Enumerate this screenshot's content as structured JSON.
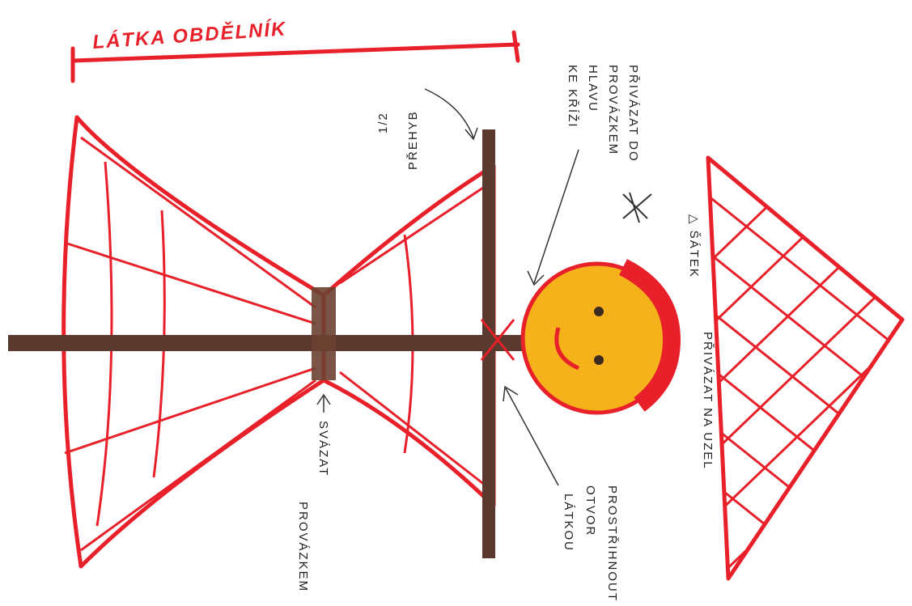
{
  "title": "LÁTKA OBDĚLNÍK",
  "notes": [
    {
      "lines": [
        "PŘEHYB",
        "1/2"
      ]
    },
    {
      "lines": [
        "PŘIVÁZAT DO",
        "PROVÁZKEM",
        "HLAVU",
        "KE KŘÍŽI"
      ]
    },
    {
      "lines": [
        "△ ŠÁTEK"
      ]
    },
    {
      "lines": [
        "PŘIVÁZAT NA UZEL"
      ]
    },
    {
      "lines": [
        "PROSTŘIHNOUT",
        "OTVOR",
        "LÁTKOU"
      ]
    },
    {
      "lines": [
        "SVÁZAT",
        "PROVÁZKEM"
      ]
    }
  ]
}
